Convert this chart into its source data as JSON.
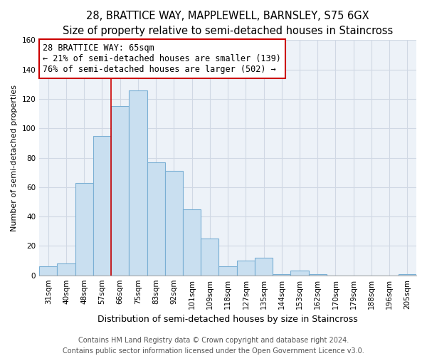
{
  "title1": "28, BRATTICE WAY, MAPPLEWELL, BARNSLEY, S75 6GX",
  "title2": "Size of property relative to semi-detached houses in Staincross",
  "xlabel": "Distribution of semi-detached houses by size in Staincross",
  "ylabel": "Number of semi-detached properties",
  "bar_color": "#c9dff0",
  "bar_edge_color": "#7aafd4",
  "categories": [
    "31sqm",
    "40sqm",
    "48sqm",
    "57sqm",
    "66sqm",
    "75sqm",
    "83sqm",
    "92sqm",
    "101sqm",
    "109sqm",
    "118sqm",
    "127sqm",
    "135sqm",
    "144sqm",
    "153sqm",
    "162sqm",
    "170sqm",
    "179sqm",
    "188sqm",
    "196sqm",
    "205sqm"
  ],
  "values": [
    6,
    8,
    63,
    95,
    115,
    126,
    77,
    71,
    45,
    25,
    6,
    10,
    12,
    1,
    3,
    1,
    0,
    0,
    0,
    0,
    1
  ],
  "vline_color": "#cc0000",
  "vline_index": 4,
  "annotation_line1": "28 BRATTICE WAY: 65sqm",
  "annotation_line2": "← 21% of semi-detached houses are smaller (139)",
  "annotation_line3": "76% of semi-detached houses are larger (502) →",
  "annotation_box_color": "#ffffff",
  "annotation_box_edge": "#cc0000",
  "ylim": [
    0,
    160
  ],
  "yticks": [
    0,
    20,
    40,
    60,
    80,
    100,
    120,
    140,
    160
  ],
  "footnote1": "Contains HM Land Registry data © Crown copyright and database right 2024.",
  "footnote2": "Contains public sector information licensed under the Open Government Licence v3.0.",
  "title1_fontsize": 10.5,
  "title2_fontsize": 9.5,
  "xlabel_fontsize": 9,
  "ylabel_fontsize": 8,
  "tick_fontsize": 7.5,
  "annotation_fontsize": 8.5,
  "footnote_fontsize": 7,
  "grid_color": "#d0d8e4",
  "bg_color": "#edf2f8"
}
